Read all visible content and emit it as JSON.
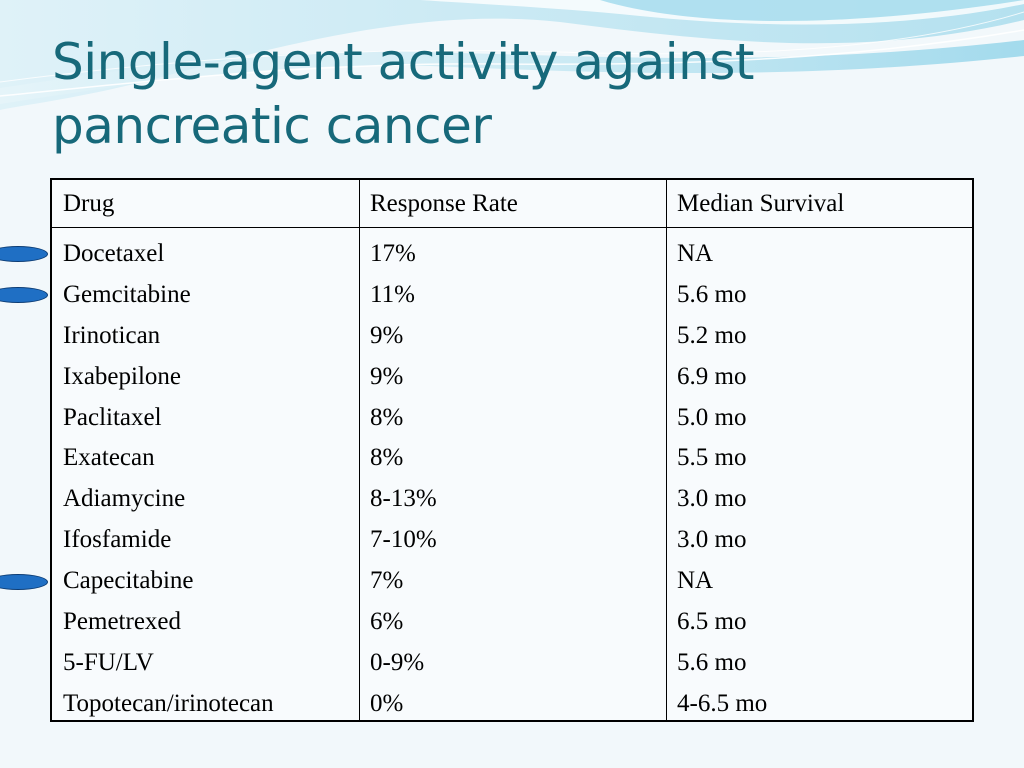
{
  "slide": {
    "title_line1": "Single-agent activity against",
    "title_line2": "pancreatic cancer"
  },
  "table": {
    "headers": {
      "drug": "Drug",
      "response_rate": "Response Rate",
      "median_survival": "Median Survival"
    },
    "rows": [
      {
        "drug": "Docetaxel",
        "response_rate": "17%",
        "median_survival": "NA",
        "highlighted": true
      },
      {
        "drug": "Gemcitabine",
        "response_rate": "11%",
        "median_survival": "5.6 mo",
        "highlighted": true
      },
      {
        "drug": "Irinotican",
        "response_rate": "9%",
        "median_survival": "5.2 mo",
        "highlighted": false
      },
      {
        "drug": "Ixabepilone",
        "response_rate": "9%",
        "median_survival": "6.9 mo",
        "highlighted": false
      },
      {
        "drug": "Paclitaxel",
        "response_rate": "8%",
        "median_survival": "5.0 mo",
        "highlighted": false
      },
      {
        "drug": "Exatecan",
        "response_rate": "8%",
        "median_survival": "5.5 mo",
        "highlighted": false
      },
      {
        "drug": "Adiamycine",
        "response_rate": "8-13%",
        "median_survival": "3.0 mo",
        "highlighted": false
      },
      {
        "drug": "Ifosfamide",
        "response_rate": "7-10%",
        "median_survival": "3.0 mo",
        "highlighted": false
      },
      {
        "drug": "Capecitabine",
        "response_rate": "7%",
        "median_survival": "NA",
        "highlighted": true
      },
      {
        "drug": "Pemetrexed",
        "response_rate": "6%",
        "median_survival": "6.5 mo",
        "highlighted": false
      },
      {
        "drug": "5-FU/LV",
        "response_rate": "0-9%",
        "median_survival": "5.6 mo",
        "highlighted": false
      },
      {
        "drug": "Topotecan/irinotecan",
        "response_rate": "0%",
        "median_survival": "4-6.5 mo",
        "highlighted": false
      }
    ]
  },
  "colors": {
    "title": "#17697a",
    "marker": "#1f6fc4",
    "wave_light": "#bfe6f2",
    "wave_mid": "#7fcde6"
  }
}
